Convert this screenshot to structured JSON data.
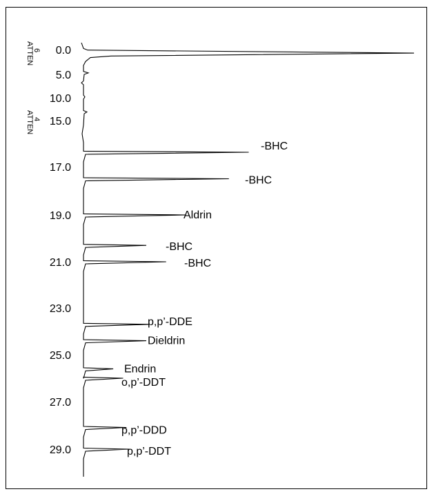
{
  "chart_data": {
    "type": "line",
    "title": "",
    "xlabel": "",
    "ylabel": "",
    "orientation": "retention time increases downward; detector response increases to the right",
    "tick_labels": [
      "0.0",
      "5.0",
      "10.0",
      "15.0",
      "17.0",
      "19.0",
      "21.0",
      "23.0",
      "25.0",
      "27.0",
      "29.0"
    ],
    "attenuation_labels": [
      {
        "name": "ATTEN",
        "value": "6"
      },
      {
        "name": "ATTEN",
        "value": "4"
      }
    ],
    "peaks": [
      {
        "label": "-BHC",
        "retention_time": 16.4,
        "relative_height": 0.5
      },
      {
        "label": "-BHC",
        "retention_time": 17.5,
        "relative_height": 0.44
      },
      {
        "label": "Aldrin",
        "retention_time": 19.0,
        "relative_height": 0.31
      },
      {
        "label": "-BHC",
        "retention_time": 20.3,
        "relative_height": 0.19
      },
      {
        "label": "-BHC",
        "retention_time": 21.0,
        "relative_height": 0.25
      },
      {
        "label": "p,p’-DDE",
        "retention_time": 23.7,
        "relative_height": 0.2
      },
      {
        "label": "Dieldrin",
        "retention_time": 24.4,
        "relative_height": 0.19
      },
      {
        "label": "Endrin",
        "retention_time": 25.6,
        "relative_height": 0.09
      },
      {
        "label": "o,p’-DDT",
        "retention_time": 26.0,
        "relative_height": 0.12
      },
      {
        "label": "p,p’-DDD",
        "retention_time": 28.1,
        "relative_height": 0.13
      },
      {
        "label": "p,p’-DDT",
        "retention_time": 29.0,
        "relative_height": 0.14
      }
    ],
    "solvent_peak": {
      "retention_time": 0.7,
      "relative_height": 1.0
    },
    "grid": false,
    "legend": "none"
  }
}
